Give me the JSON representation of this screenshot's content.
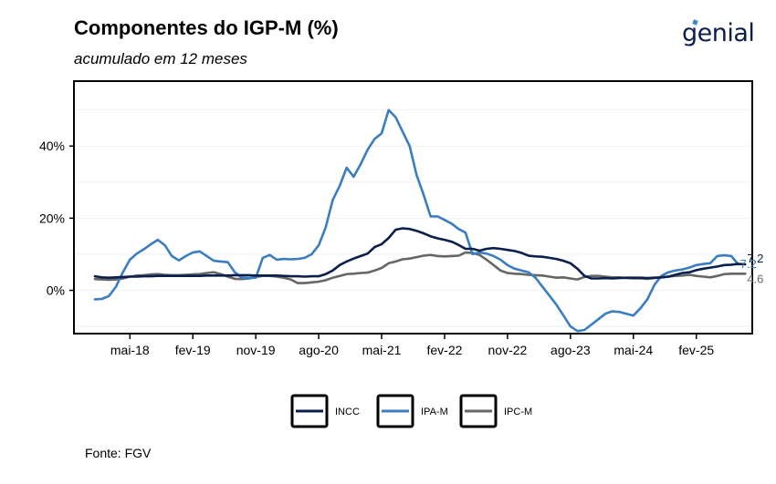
{
  "header": {
    "title": "Componentes do IGP-M (%)",
    "subtitle": "acumulado em 12 meses",
    "logo": "genial"
  },
  "footer": {
    "source": "Fonte: FGV"
  },
  "colors": {
    "INCC": "#0b1f4d",
    "IPA-M": "#3a7dc0",
    "IPC-M": "#666666"
  },
  "chart_data": {
    "type": "line",
    "title": "Componentes do IGP-M (%)",
    "subtitle": "acumulado em 12 meses",
    "xlabel": "",
    "ylabel": "",
    "x_start": "2017-12",
    "x_step": "month",
    "x_ticks": [
      "mai-18",
      "fev-19",
      "nov-19",
      "ago-20",
      "mai-21",
      "fev-22",
      "nov-22",
      "ago-23",
      "mai-24",
      "fev-25"
    ],
    "x_tick_index": [
      5,
      14,
      23,
      32,
      41,
      50,
      59,
      68,
      77,
      86
    ],
    "y_ticks": [
      "0%",
      "20%",
      "40%"
    ],
    "y_tick_values": [
      0,
      20,
      40
    ],
    "ylim": [
      -12,
      58
    ],
    "xlim": [
      -3,
      94
    ],
    "grid": true,
    "legend": "bottom",
    "series": [
      {
        "name": "INCC",
        "end_label": "7.2",
        "values": [
          3.9,
          3.6,
          3.5,
          3.6,
          3.7,
          3.8,
          3.8,
          3.9,
          3.9,
          4.0,
          4.0,
          4.0,
          4.0,
          4.0,
          4.0,
          4.0,
          4.1,
          4.1,
          4.1,
          4.1,
          4.2,
          4.2,
          4.2,
          4.1,
          4.1,
          4.1,
          4.1,
          4.0,
          3.9,
          3.9,
          3.8,
          3.9,
          3.9,
          4.5,
          5.5,
          7.0,
          8.0,
          8.8,
          9.5,
          10.2,
          12.0,
          12.8,
          14.5,
          16.8,
          17.2,
          17.0,
          16.5,
          15.8,
          15.0,
          14.4,
          14.0,
          13.5,
          12.6,
          11.5,
          11.5,
          11.0,
          11.5,
          11.7,
          11.5,
          11.2,
          10.9,
          10.4,
          9.6,
          9.4,
          9.3,
          9.0,
          8.7,
          8.2,
          7.5,
          6.0,
          4.0,
          3.3,
          3.3,
          3.4,
          3.3,
          3.4,
          3.5,
          3.5,
          3.5,
          3.4,
          3.5,
          3.6,
          3.8,
          4.3,
          4.8,
          5.0,
          5.6,
          6.0,
          6.3,
          6.6,
          7.0,
          7.1,
          7.3,
          7.2
        ]
      },
      {
        "name": "IPA-M",
        "end_label": "7.2",
        "values": [
          -2.5,
          -2.4,
          -1.6,
          1.0,
          5.0,
          8.5,
          10.2,
          11.4,
          12.8,
          14.0,
          12.5,
          9.5,
          8.3,
          9.5,
          10.5,
          10.8,
          9.5,
          8.2,
          8.0,
          7.8,
          5.0,
          3.5,
          3.4,
          3.5,
          9.0,
          9.8,
          8.5,
          8.7,
          8.6,
          8.7,
          9.0,
          10.0,
          12.5,
          17.5,
          25.0,
          29.0,
          34.0,
          31.5,
          35.0,
          39.0,
          42.0,
          43.5,
          50.0,
          48.0,
          44.0,
          40.0,
          32.0,
          26.5,
          20.5,
          20.5,
          19.5,
          18.5,
          17.0,
          16.0,
          10.0,
          10.5,
          10.2,
          9.5,
          8.5,
          7.0,
          6.0,
          5.5,
          5.0,
          3.5,
          1.0,
          -1.5,
          -4.0,
          -7.0,
          -10.0,
          -11.3,
          -11.0,
          -9.5,
          -8.0,
          -6.5,
          -5.8,
          -6.0,
          -6.5,
          -7.0,
          -5.0,
          -2.5,
          1.5,
          4.0,
          5.0,
          5.5,
          5.8,
          6.3,
          7.0,
          7.3,
          7.5,
          9.5,
          9.7,
          9.5,
          7.2
        ]
      },
      {
        "name": "IPC-M",
        "end_label": "4.6",
        "values": [
          3.1,
          3.0,
          2.9,
          3.0,
          3.3,
          3.8,
          4.1,
          4.2,
          4.4,
          4.5,
          4.3,
          4.2,
          4.2,
          4.3,
          4.4,
          4.5,
          4.8,
          5.0,
          4.5,
          3.8,
          3.2,
          3.1,
          3.3,
          3.7,
          4.0,
          4.0,
          3.8,
          3.5,
          3.0,
          2.0,
          2.0,
          2.2,
          2.4,
          2.8,
          3.5,
          4.0,
          4.5,
          4.6,
          4.8,
          4.9,
          5.5,
          6.2,
          7.5,
          8.0,
          8.6,
          8.8,
          9.2,
          9.6,
          9.8,
          9.5,
          9.4,
          9.5,
          9.6,
          10.5,
          10.4,
          9.8,
          8.5,
          7.0,
          5.5,
          4.8,
          4.6,
          4.5,
          4.3,
          4.2,
          4.1,
          3.8,
          3.5,
          3.6,
          3.3,
          3.0,
          3.7,
          4.0,
          4.0,
          3.8,
          3.6,
          3.6,
          3.4,
          3.3,
          3.3,
          3.2,
          3.4,
          3.6,
          3.8,
          4.0,
          4.1,
          4.3,
          4.0,
          3.8,
          3.6,
          4.0,
          4.5,
          4.6,
          4.6,
          4.6
        ]
      }
    ]
  }
}
